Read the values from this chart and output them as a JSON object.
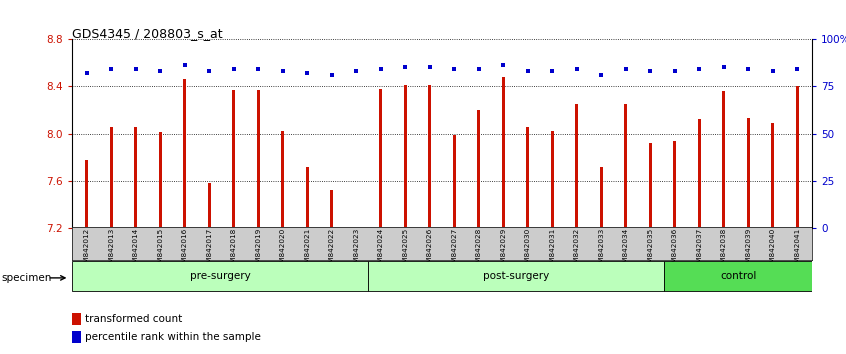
{
  "title": "GDS4345 / 208803_s_at",
  "categories": [
    "GSM842012",
    "GSM842013",
    "GSM842014",
    "GSM842015",
    "GSM842016",
    "GSM842017",
    "GSM842018",
    "GSM842019",
    "GSM842020",
    "GSM842021",
    "GSM842022",
    "GSM842023",
    "GSM842024",
    "GSM842025",
    "GSM842026",
    "GSM842027",
    "GSM842028",
    "GSM842029",
    "GSM842030",
    "GSM842031",
    "GSM842032",
    "GSM842033",
    "GSM842034",
    "GSM842035",
    "GSM842036",
    "GSM842037",
    "GSM842038",
    "GSM842039",
    "GSM842040",
    "GSM842041"
  ],
  "bar_values": [
    7.78,
    8.06,
    8.06,
    8.01,
    8.46,
    7.58,
    8.37,
    8.37,
    8.02,
    7.72,
    7.52,
    7.2,
    8.38,
    8.41,
    8.41,
    7.99,
    8.2,
    8.48,
    8.06,
    8.02,
    8.25,
    7.72,
    8.25,
    7.92,
    7.94,
    8.12,
    8.36,
    8.13,
    8.09,
    8.4
  ],
  "percentile_values": [
    82,
    84,
    84,
    83,
    86,
    83,
    84,
    84,
    83,
    82,
    81,
    83,
    84,
    85,
    85,
    84,
    84,
    86,
    83,
    83,
    84,
    81,
    84,
    83,
    83,
    84,
    85,
    84,
    83,
    84
  ],
  "bar_color": "#cc1100",
  "percentile_color": "#0000cc",
  "ylim_left": [
    7.2,
    8.8
  ],
  "ylim_right": [
    0,
    100
  ],
  "yticks_left": [
    7.2,
    7.6,
    8.0,
    8.4,
    8.8
  ],
  "yticks_right": [
    0,
    25,
    50,
    75,
    100
  ],
  "ytick_labels_right": [
    "0",
    "25",
    "50",
    "75",
    "100%"
  ],
  "groups": [
    {
      "label": "pre-surgery",
      "start": 0,
      "end": 12
    },
    {
      "label": "post-surgery",
      "start": 12,
      "end": 24
    },
    {
      "label": "control",
      "start": 24,
      "end": 30
    }
  ],
  "group_colors": [
    "#bbffbb",
    "#bbffbb",
    "#55dd55"
  ],
  "specimen_label": "specimen",
  "legend_items": [
    {
      "label": "transformed count",
      "color": "#cc1100"
    },
    {
      "label": "percentile rank within the sample",
      "color": "#0000cc"
    }
  ],
  "bar_width": 0.12,
  "bar_bottom": 7.2
}
